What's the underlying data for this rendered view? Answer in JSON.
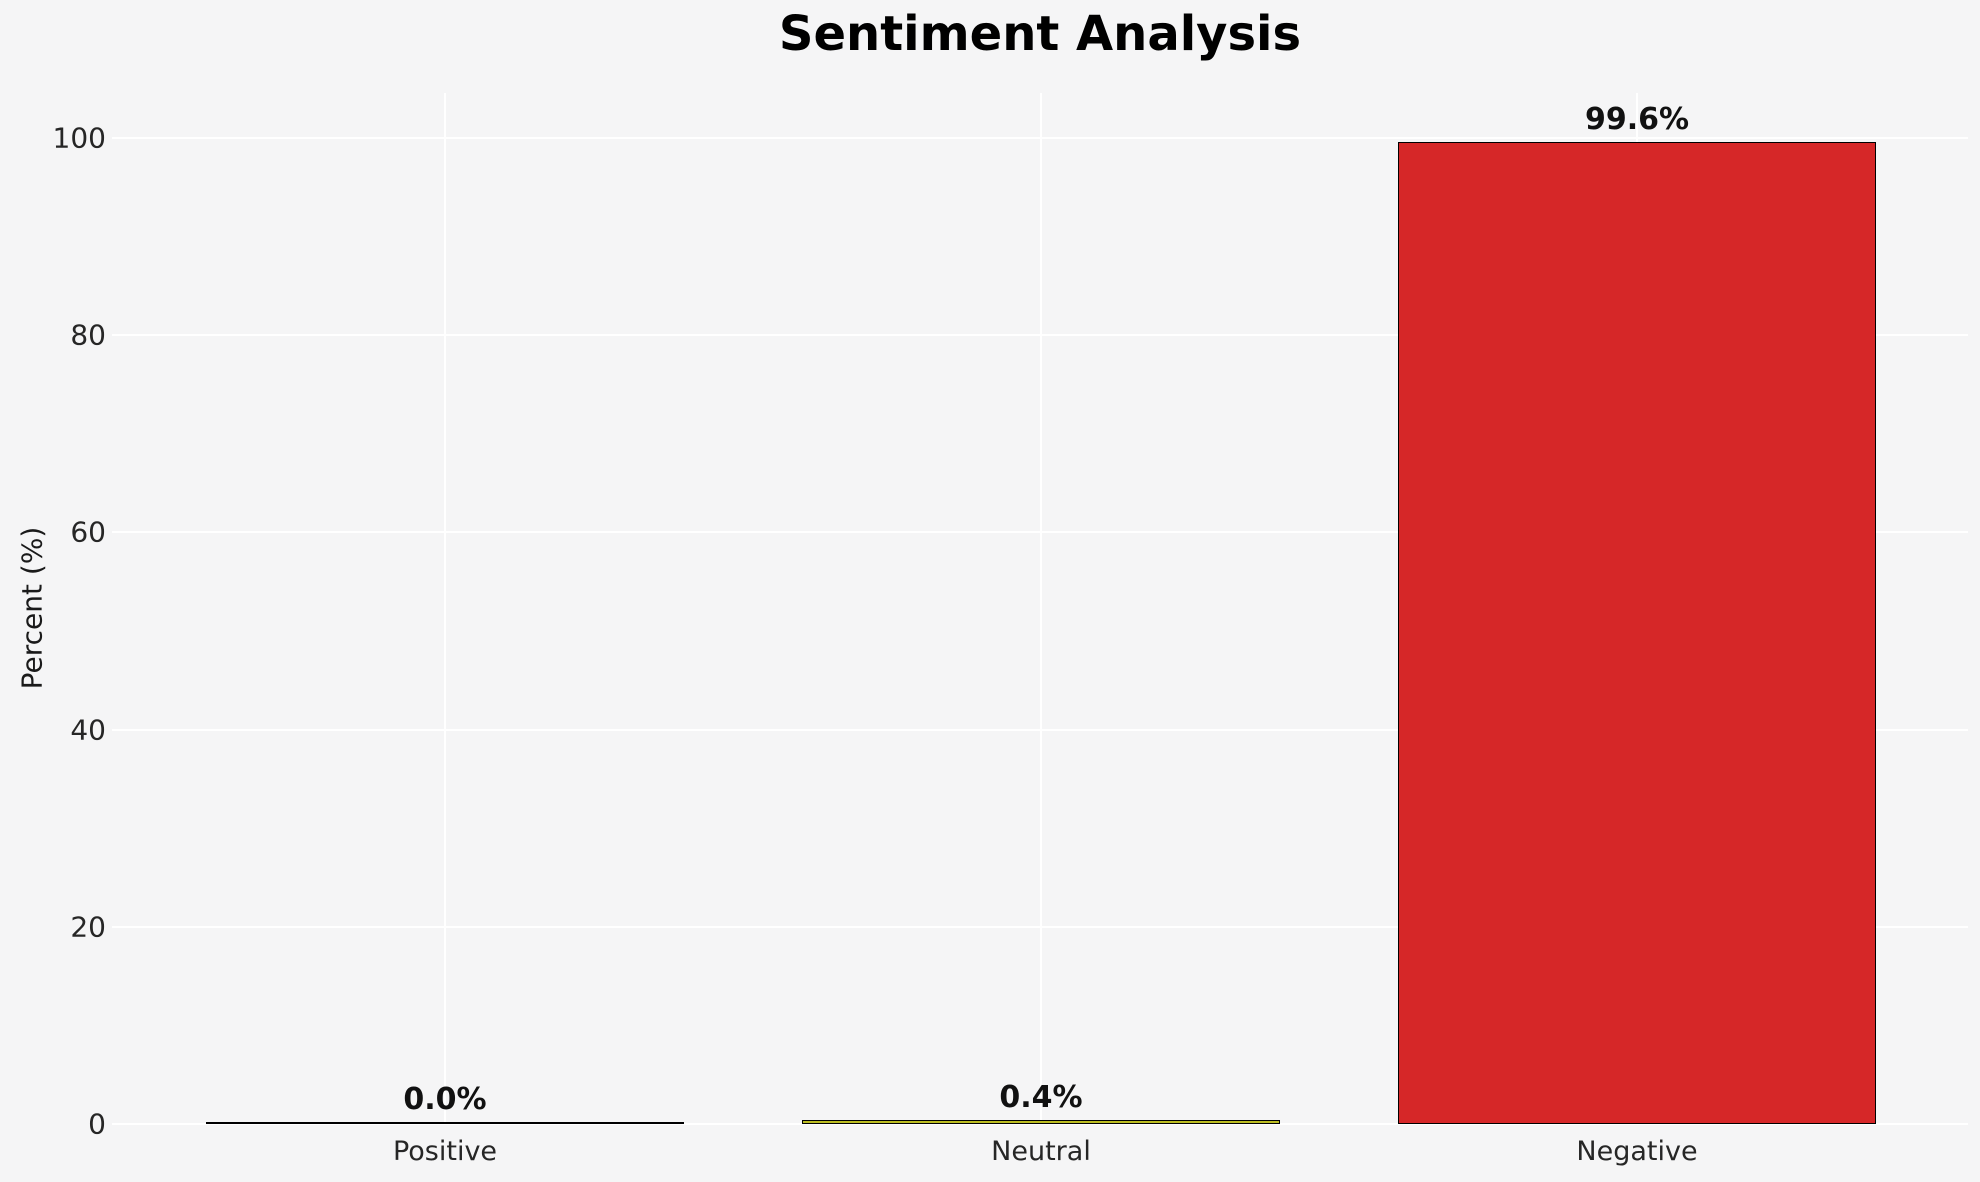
{
  "title": "Sentiment Analysis",
  "chart_data": {
    "type": "bar",
    "title": "Sentiment Analysis",
    "xlabel": "",
    "ylabel": "Percent (%)",
    "categories": [
      "Positive",
      "Neutral",
      "Negative"
    ],
    "values": [
      0.0,
      0.4,
      99.6
    ],
    "bar_labels": [
      "0.0%",
      "0.4%",
      "99.6%"
    ],
    "bar_colors": [
      null,
      "#bcbd22",
      "#d62728"
    ],
    "bar_edge_color": "#000000",
    "yticks": [
      0,
      20,
      40,
      60,
      80,
      100
    ],
    "ylim": [
      0,
      104.6
    ],
    "grid": true,
    "grid_color": "#ffffff",
    "background_color": "#f5f5f6",
    "legend": null
  }
}
